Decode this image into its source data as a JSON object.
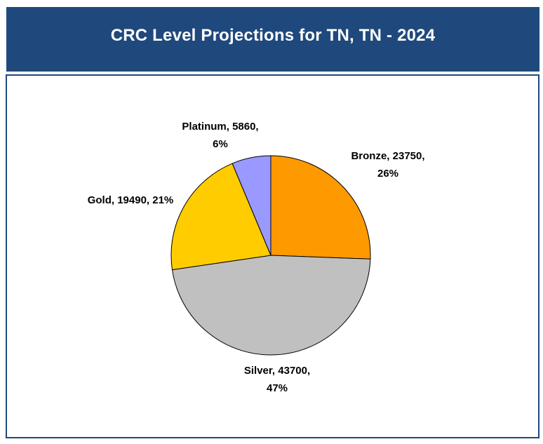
{
  "chart_data": {
    "type": "pie",
    "title": "CRC Level Projections for TN, TN - 2024",
    "slices": [
      {
        "label": "Bronze",
        "value": 23750,
        "percent": "26%",
        "color": "#ff9900",
        "text_lines": [
          "Bronze, 23750,",
          "26%"
        ]
      },
      {
        "label": "Silver",
        "value": 43700,
        "percent": "47%",
        "color": "#c0c0c0",
        "text_lines": [
          "Silver, 43700,",
          "47%"
        ]
      },
      {
        "label": "Gold",
        "value": 19490,
        "percent": "21%",
        "color": "#ffcc00",
        "text_lines": [
          "Gold, 19490, 21%"
        ]
      },
      {
        "label": "Platinum",
        "value": 5860,
        "percent": "6%",
        "color": "#9999ff",
        "text_lines": [
          "Platinum, 5860,",
          "6%"
        ]
      }
    ],
    "start_angle_deg": 0,
    "direction": "clockwise"
  },
  "colors": {
    "banner": "#1f497d",
    "frame_border": "#1f497d",
    "title_text": "#ffffff"
  }
}
